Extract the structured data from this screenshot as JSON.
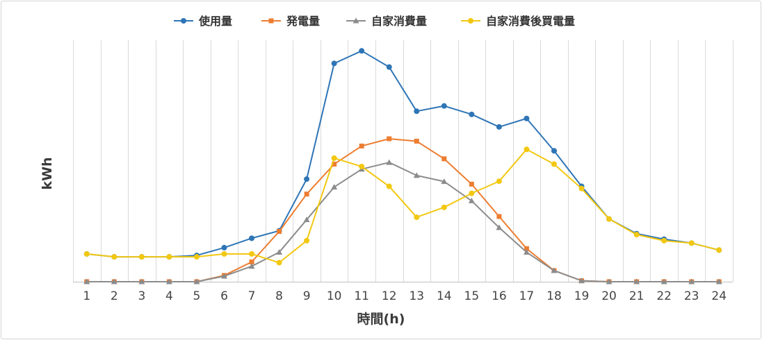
{
  "chart_data": {
    "type": "line",
    "title": "",
    "xlabel": "時間(h)",
    "ylabel": "kWh",
    "categories": [
      "1",
      "2",
      "3",
      "4",
      "5",
      "6",
      "7",
      "8",
      "9",
      "10",
      "11",
      "12",
      "13",
      "14",
      "15",
      "16",
      "17",
      "18",
      "19",
      "20",
      "21",
      "22",
      "23",
      "24"
    ],
    "ylim": [
      0,
      100
    ],
    "grid": "vertical",
    "legend_position": "top",
    "series": [
      {
        "name": "使用量",
        "color": "#2E75B6",
        "marker": "circle",
        "values": [
          11.5,
          10.3,
          10.3,
          10.3,
          10.9,
          14.1,
          18.0,
          21.1,
          42.5,
          90.4,
          95.6,
          88.9,
          70.6,
          72.8,
          69.3,
          64.1,
          67.6,
          54.2,
          39.5,
          26.0,
          19.9,
          17.6,
          16.0,
          13.1
        ]
      },
      {
        "name": "発電量",
        "color": "#ED7D31",
        "marker": "square",
        "values": [
          0,
          0,
          0,
          0,
          0,
          2.6,
          8.2,
          20.8,
          36.3,
          48.7,
          56.2,
          59.2,
          58.2,
          50.9,
          40.4,
          27.0,
          13.7,
          4.6,
          0.4,
          0,
          0,
          0,
          0,
          0
        ]
      },
      {
        "name": "自家消費量",
        "color": "#8C8C8C",
        "marker": "triangle",
        "values": [
          0,
          0,
          0,
          0,
          0,
          2.3,
          6.4,
          12.2,
          25.7,
          39.2,
          46.6,
          49.4,
          44.0,
          41.5,
          33.5,
          22.4,
          12.2,
          4.6,
          0.4,
          0,
          0,
          0,
          0,
          0
        ]
      },
      {
        "name": "自家消費後買電量",
        "color": "#F2C811",
        "marker": "circle",
        "values": [
          11.5,
          10.3,
          10.3,
          10.3,
          10.3,
          11.5,
          11.5,
          7.9,
          17.0,
          51.2,
          47.7,
          39.5,
          26.7,
          30.8,
          36.6,
          41.6,
          54.8,
          48.7,
          38.6,
          26.0,
          19.5,
          17.0,
          16.0,
          13.1
        ]
      }
    ]
  }
}
